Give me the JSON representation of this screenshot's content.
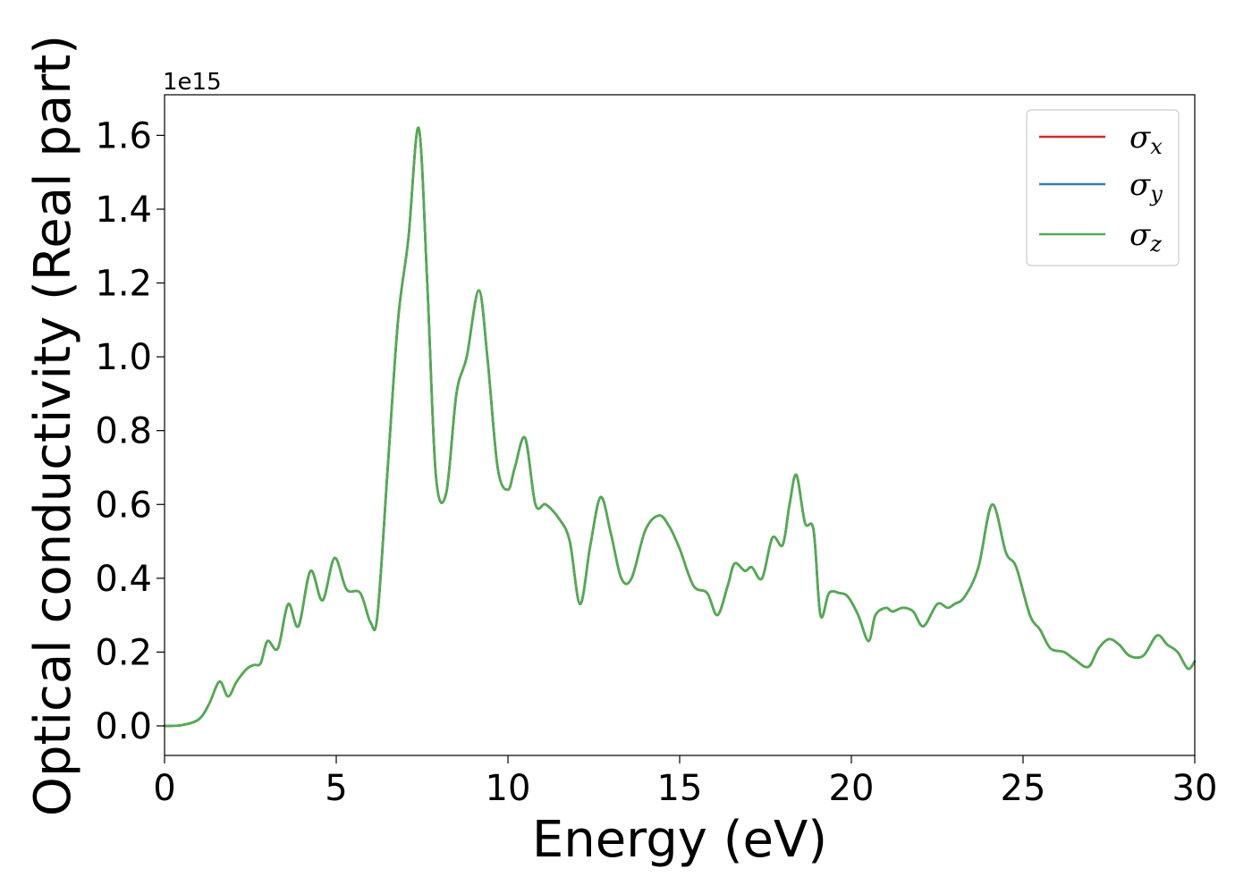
{
  "chart_data": {
    "type": "line",
    "xlabel": "Energy (eV)",
    "ylabel": "Optical conductivity (Real part)",
    "y_offset_label": "1e15",
    "y_scale_factor": 1000000000000000.0,
    "xlim": [
      0,
      30
    ],
    "ylim": [
      -0.08,
      1.71
    ],
    "x_ticks": [
      0,
      5,
      10,
      15,
      20,
      25,
      30
    ],
    "x_tick_labels": [
      "0",
      "5",
      "10",
      "15",
      "20",
      "25",
      "30"
    ],
    "y_ticks": [
      0.0,
      0.2,
      0.4,
      0.6,
      0.8,
      1.0,
      1.2,
      1.4,
      1.6
    ],
    "y_tick_labels": [
      "0.0",
      "0.2",
      "0.4",
      "0.6",
      "0.8",
      "1.0",
      "1.2",
      "1.4",
      "1.6"
    ],
    "grid": false,
    "legend_position": "top-right",
    "x": [
      0,
      0.5,
      1.0,
      1.3,
      1.6,
      1.85,
      2.1,
      2.4,
      2.6,
      2.8,
      3.0,
      3.3,
      3.6,
      3.9,
      4.25,
      4.6,
      4.95,
      5.3,
      5.7,
      6.0,
      6.2,
      6.5,
      6.8,
      7.1,
      7.4,
      7.65,
      7.9,
      8.2,
      8.5,
      8.8,
      9.15,
      9.4,
      9.7,
      10.0,
      10.2,
      10.5,
      10.8,
      11.1,
      11.5,
      11.8,
      12.1,
      12.4,
      12.7,
      13.0,
      13.3,
      13.6,
      14.0,
      14.4,
      14.7,
      15.0,
      15.4,
      15.8,
      16.1,
      16.4,
      16.6,
      16.9,
      17.1,
      17.4,
      17.7,
      18.0,
      18.2,
      18.4,
      18.65,
      18.9,
      19.1,
      19.35,
      19.65,
      19.9,
      20.2,
      20.5,
      20.7,
      21.0,
      21.2,
      21.5,
      21.8,
      22.1,
      22.5,
      22.8,
      23.0,
      23.3,
      23.7,
      24.1,
      24.5,
      24.8,
      25.2,
      25.5,
      25.8,
      26.2,
      26.5,
      26.9,
      27.2,
      27.5,
      27.8,
      28.1,
      28.5,
      28.9,
      29.2,
      29.5,
      29.8,
      30.0
    ],
    "series": [
      {
        "name": "σx",
        "color": "#d62728",
        "values": [
          0,
          0.002,
          0.018,
          0.06,
          0.12,
          0.08,
          0.12,
          0.155,
          0.165,
          0.17,
          0.23,
          0.21,
          0.33,
          0.27,
          0.42,
          0.34,
          0.455,
          0.37,
          0.36,
          0.28,
          0.3,
          0.7,
          1.1,
          1.32,
          1.62,
          1.2,
          0.68,
          0.63,
          0.9,
          1.0,
          1.18,
          1.0,
          0.7,
          0.64,
          0.7,
          0.78,
          0.6,
          0.6,
          0.56,
          0.5,
          0.33,
          0.49,
          0.62,
          0.52,
          0.4,
          0.4,
          0.53,
          0.57,
          0.54,
          0.48,
          0.38,
          0.36,
          0.3,
          0.38,
          0.44,
          0.42,
          0.43,
          0.4,
          0.51,
          0.49,
          0.6,
          0.68,
          0.55,
          0.53,
          0.3,
          0.36,
          0.36,
          0.35,
          0.3,
          0.23,
          0.3,
          0.32,
          0.31,
          0.32,
          0.31,
          0.27,
          0.33,
          0.32,
          0.33,
          0.35,
          0.43,
          0.6,
          0.47,
          0.43,
          0.3,
          0.26,
          0.21,
          0.2,
          0.18,
          0.16,
          0.21,
          0.235,
          0.22,
          0.19,
          0.19,
          0.245,
          0.22,
          0.2,
          0.155,
          0.175
        ]
      },
      {
        "name": "σy",
        "color": "#377eb8",
        "values": [
          0,
          0.002,
          0.018,
          0.06,
          0.12,
          0.08,
          0.12,
          0.155,
          0.165,
          0.17,
          0.23,
          0.21,
          0.33,
          0.27,
          0.42,
          0.34,
          0.455,
          0.37,
          0.36,
          0.28,
          0.3,
          0.7,
          1.1,
          1.32,
          1.62,
          1.2,
          0.68,
          0.63,
          0.9,
          1.0,
          1.18,
          1.0,
          0.7,
          0.64,
          0.7,
          0.78,
          0.6,
          0.6,
          0.56,
          0.5,
          0.33,
          0.49,
          0.62,
          0.52,
          0.4,
          0.4,
          0.53,
          0.57,
          0.54,
          0.48,
          0.38,
          0.36,
          0.3,
          0.38,
          0.44,
          0.42,
          0.43,
          0.4,
          0.51,
          0.49,
          0.6,
          0.68,
          0.55,
          0.53,
          0.3,
          0.36,
          0.36,
          0.35,
          0.3,
          0.23,
          0.3,
          0.32,
          0.31,
          0.32,
          0.31,
          0.27,
          0.33,
          0.32,
          0.33,
          0.35,
          0.43,
          0.6,
          0.47,
          0.43,
          0.3,
          0.26,
          0.21,
          0.2,
          0.18,
          0.16,
          0.21,
          0.235,
          0.22,
          0.19,
          0.19,
          0.245,
          0.22,
          0.2,
          0.155,
          0.175
        ]
      },
      {
        "name": "σz",
        "color": "#4daf4a",
        "values": [
          0,
          0.002,
          0.018,
          0.06,
          0.12,
          0.08,
          0.12,
          0.155,
          0.165,
          0.17,
          0.23,
          0.21,
          0.33,
          0.27,
          0.42,
          0.34,
          0.455,
          0.37,
          0.36,
          0.28,
          0.3,
          0.7,
          1.1,
          1.32,
          1.62,
          1.2,
          0.68,
          0.63,
          0.9,
          1.0,
          1.18,
          1.0,
          0.7,
          0.64,
          0.7,
          0.78,
          0.6,
          0.6,
          0.56,
          0.5,
          0.33,
          0.49,
          0.62,
          0.52,
          0.4,
          0.4,
          0.53,
          0.57,
          0.54,
          0.48,
          0.38,
          0.36,
          0.3,
          0.38,
          0.44,
          0.42,
          0.43,
          0.4,
          0.51,
          0.49,
          0.6,
          0.68,
          0.55,
          0.53,
          0.3,
          0.36,
          0.36,
          0.35,
          0.3,
          0.23,
          0.3,
          0.32,
          0.31,
          0.32,
          0.31,
          0.27,
          0.33,
          0.32,
          0.33,
          0.35,
          0.43,
          0.6,
          0.47,
          0.43,
          0.3,
          0.26,
          0.21,
          0.2,
          0.18,
          0.16,
          0.21,
          0.235,
          0.22,
          0.19,
          0.19,
          0.245,
          0.22,
          0.2,
          0.155,
          0.175
        ]
      }
    ],
    "legend": [
      {
        "symbol": "σ",
        "subscript": "x",
        "color": "#d62728"
      },
      {
        "symbol": "σ",
        "subscript": "y",
        "color": "#377eb8"
      },
      {
        "symbol": "σ",
        "subscript": "z",
        "color": "#4daf4a"
      }
    ]
  }
}
